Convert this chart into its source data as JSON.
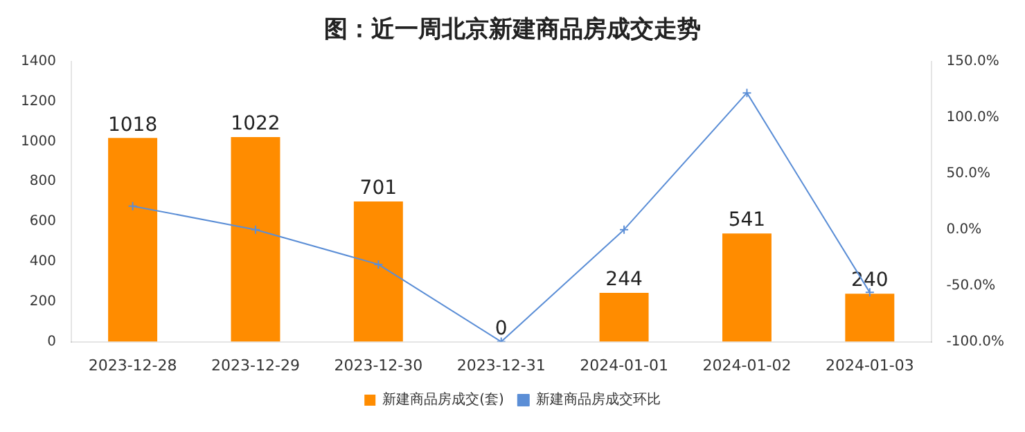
{
  "chart_data": {
    "type": "bar",
    "title": "图：近一周北京新建商品房成交走势",
    "categories": [
      "2023-12-28",
      "2023-12-29",
      "2023-12-30",
      "2023-12-31",
      "2024-01-01",
      "2024-01-02",
      "2024-01-03"
    ],
    "series": [
      {
        "name": "新建商品房成交(套)",
        "color": "#ff8c00",
        "values": [
          1018,
          1022,
          701,
          0,
          244,
          541,
          240
        ],
        "value_labels": [
          "1018",
          "1022",
          "701",
          "0",
          "244",
          "541",
          "240"
        ]
      },
      {
        "name": "新建商品房成交环比",
        "type": "line",
        "axis": "y2",
        "color": "#5b8ed6",
        "values": [
          21,
          0,
          -31,
          -100,
          0,
          122,
          -56
        ],
        "marker": "cross"
      }
    ],
    "ylim": [
      0,
      1400
    ],
    "yticks": [
      0,
      200,
      400,
      600,
      800,
      1000,
      1200,
      1400
    ],
    "y2lim": [
      -100,
      150
    ],
    "y2ticks": [
      {
        "value": -100,
        "label": "-100.0%"
      },
      {
        "value": -50,
        "label": "-50.0%"
      },
      {
        "value": 0,
        "label": "0.0%"
      },
      {
        "value": 50,
        "label": "50.0%"
      },
      {
        "value": 100,
        "label": "100.0%"
      },
      {
        "value": 150,
        "label": "150.0%"
      }
    ],
    "legend": "bottom",
    "grid": false
  }
}
